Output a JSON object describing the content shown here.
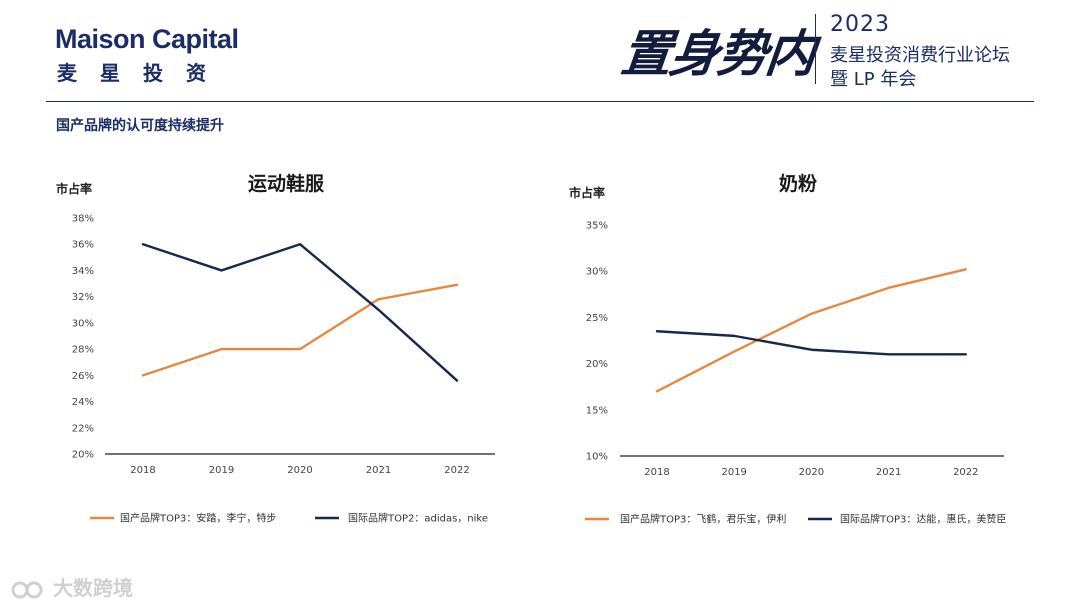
{
  "header": {
    "logo_en": "Maison Capital",
    "logo_cn": "麦星投资",
    "calligraphy": "置身势内",
    "event_year": "2023",
    "event_line1": "麦星投资消费行业论坛",
    "event_line2": "暨 LP 年会"
  },
  "subtitle": "国产品牌的认可度持续提升",
  "watermark": "大数跨境",
  "colors": {
    "domestic": "#e8883f",
    "international": "#17284f",
    "axis": "#222222"
  },
  "chart_data": [
    {
      "type": "line",
      "title": "运动鞋服",
      "ylabel": "市占率",
      "xlabel": "",
      "categories": [
        "2018",
        "2019",
        "2020",
        "2021",
        "2022"
      ],
      "ylim": [
        20,
        38
      ],
      "yticks": [
        "20%",
        "22%",
        "24%",
        "26%",
        "28%",
        "30%",
        "32%",
        "34%",
        "36%",
        "38%"
      ],
      "ytick_values": [
        20,
        22,
        24,
        26,
        28,
        30,
        32,
        34,
        36,
        38
      ],
      "series": [
        {
          "name": "国产品牌TOP3：安踏，李宁，特步",
          "color": "#e8883f",
          "values": [
            26.0,
            28.0,
            28.0,
            31.8,
            32.9
          ]
        },
        {
          "name": "国际品牌TOP2：adidas，nike",
          "color": "#17284f",
          "values": [
            36.0,
            34.0,
            36.0,
            31.0,
            25.6
          ]
        }
      ],
      "legend_position": "bottom"
    },
    {
      "type": "line",
      "title": "奶粉",
      "ylabel": "市占率",
      "xlabel": "",
      "categories": [
        "2018",
        "2019",
        "2020",
        "2021",
        "2022"
      ],
      "ylim": [
        10,
        35
      ],
      "yticks": [
        "10%",
        "15%",
        "20%",
        "25%",
        "30%",
        "35%"
      ],
      "ytick_values": [
        10,
        15,
        20,
        25,
        30,
        35
      ],
      "series": [
        {
          "name": "国产品牌TOP3：飞鹤，君乐宝，伊利",
          "color": "#e8883f",
          "values": [
            17.0,
            21.3,
            25.4,
            28.2,
            30.2
          ]
        },
        {
          "name": "国际品牌TOP3：达能，惠氏，美赞臣",
          "color": "#17284f",
          "values": [
            23.5,
            23.0,
            21.5,
            21.0,
            21.0
          ]
        }
      ],
      "legend_position": "bottom"
    }
  ]
}
